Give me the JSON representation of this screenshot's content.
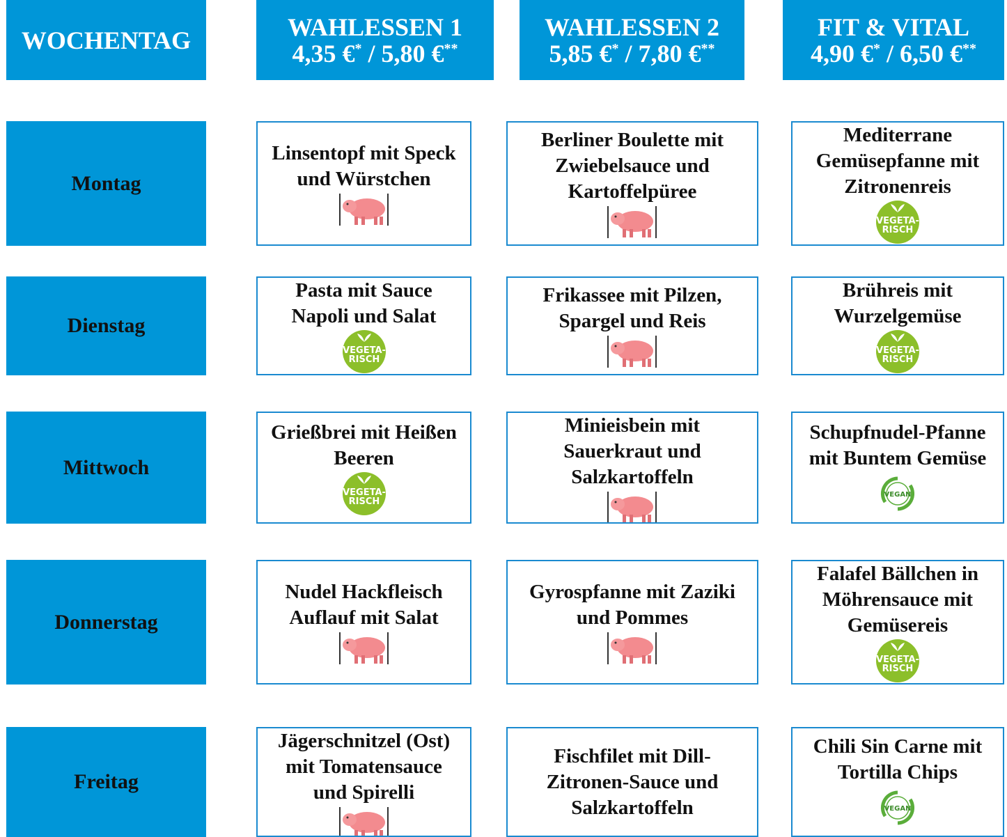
{
  "header": {
    "day_column": "WOCHENTAG",
    "columns": [
      {
        "title": "WAHLESSEN 1",
        "price_parts": [
          "4,35 €",
          "*",
          " / 5,80 €",
          "**"
        ]
      },
      {
        "title": "WAHLESSEN 2",
        "price_parts": [
          "5,85 €",
          "*",
          " / 7,80 €",
          "**"
        ]
      },
      {
        "title": "FIT & VITAL",
        "price_parts": [
          "4,90 €",
          "*",
          " / 6,50 €",
          "**"
        ]
      }
    ]
  },
  "badges": {
    "vegetarian": [
      "VEGETA-",
      "RISCH"
    ],
    "vegan": "VEGAN"
  },
  "rows": [
    {
      "day": "Montag",
      "dishes": [
        {
          "text": "Linsentopf mit Speck und Würstchen",
          "icon": "pork"
        },
        {
          "text": "Berliner Boulette mit Zwiebelsauce und Kartoffelpüree",
          "icon": "pork"
        },
        {
          "text": "Mediterrane Gemüsepfanne mit Zitronenreis",
          "icon": "vegetarian"
        }
      ]
    },
    {
      "day": "Dienstag",
      "dishes": [
        {
          "text": "Pasta mit Sauce Napoli und Salat",
          "icon": "vegetarian"
        },
        {
          "text": "Frikassee mit Pilzen, Spargel und Reis",
          "icon": "pork"
        },
        {
          "text": "Brühreis mit Wurzelgemüse",
          "icon": "vegetarian"
        }
      ]
    },
    {
      "day": "Mittwoch",
      "dishes": [
        {
          "text": "Grießbrei mit Heißen Beeren",
          "icon": "vegetarian"
        },
        {
          "text": "Minieisbein mit Sauerkraut und Salzkartoffeln",
          "icon": "pork"
        },
        {
          "text": "Schupfnudel-Pfanne mit Buntem Gemüse",
          "icon": "vegan"
        }
      ]
    },
    {
      "day": "Donnerstag",
      "dishes": [
        {
          "text": "Nudel Hackfleisch Auflauf mit Salat",
          "icon": "pork"
        },
        {
          "text": "Gyrospfanne mit Zaziki und Pommes",
          "icon": "pork"
        },
        {
          "text": "Falafel Bällchen in Möhrensauce mit Gemüsereis",
          "icon": "vegetarian"
        }
      ]
    },
    {
      "day": "Freitag",
      "dishes": [
        {
          "text": "Jägerschnitzel (Ost) mit Tomatensauce und Spirelli",
          "icon": "pork"
        },
        {
          "text": "Fischfilet mit Dill-Zitronen-Sauce und Salzkartoffeln",
          "icon": null
        },
        {
          "text": "Chili Sin Carne mit Tortilla Chips",
          "icon": "vegan"
        }
      ]
    }
  ]
}
